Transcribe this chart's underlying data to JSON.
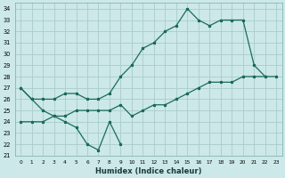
{
  "xlabel": "Humidex (Indice chaleur)",
  "bg_color": "#cce8e8",
  "grid_color": "#aacccc",
  "line_color": "#1a6b5e",
  "xlim": [
    -0.5,
    23.5
  ],
  "ylim": [
    21,
    34.5
  ],
  "xticks": [
    0,
    1,
    2,
    3,
    4,
    5,
    6,
    7,
    8,
    9,
    10,
    11,
    12,
    13,
    14,
    15,
    16,
    17,
    18,
    19,
    20,
    21,
    22,
    23
  ],
  "yticks": [
    21,
    22,
    23,
    24,
    25,
    26,
    27,
    28,
    29,
    30,
    31,
    32,
    33,
    34
  ],
  "line1_x": [
    0,
    1,
    2,
    3,
    4,
    5,
    6,
    7,
    8,
    9
  ],
  "line1_y": [
    27,
    26,
    25,
    24.5,
    24,
    23.5,
    22,
    21.5,
    24,
    22
  ],
  "line2_x": [
    0,
    1,
    2,
    3,
    4,
    5,
    6,
    7,
    8,
    9,
    10,
    11,
    12,
    13,
    14,
    15,
    16,
    17,
    18,
    19,
    20,
    21,
    22
  ],
  "line2_y": [
    27,
    26,
    26,
    26,
    26.5,
    26.5,
    26,
    26,
    26.5,
    28,
    29,
    30.5,
    31,
    32,
    32.5,
    34,
    33,
    32.5,
    33,
    33,
    33,
    29,
    28
  ],
  "line3_x": [
    0,
    1,
    2,
    3,
    4,
    5,
    6,
    7,
    8,
    9,
    10,
    11,
    12,
    13,
    14,
    15,
    16,
    17,
    18,
    19,
    20,
    21,
    22,
    23
  ],
  "line3_y": [
    24,
    24,
    24,
    24.5,
    24.5,
    25,
    25,
    25,
    25,
    25.5,
    24.5,
    25,
    25.5,
    25.5,
    26,
    26.5,
    27,
    27.5,
    27.5,
    27.5,
    28,
    28,
    28,
    28
  ]
}
